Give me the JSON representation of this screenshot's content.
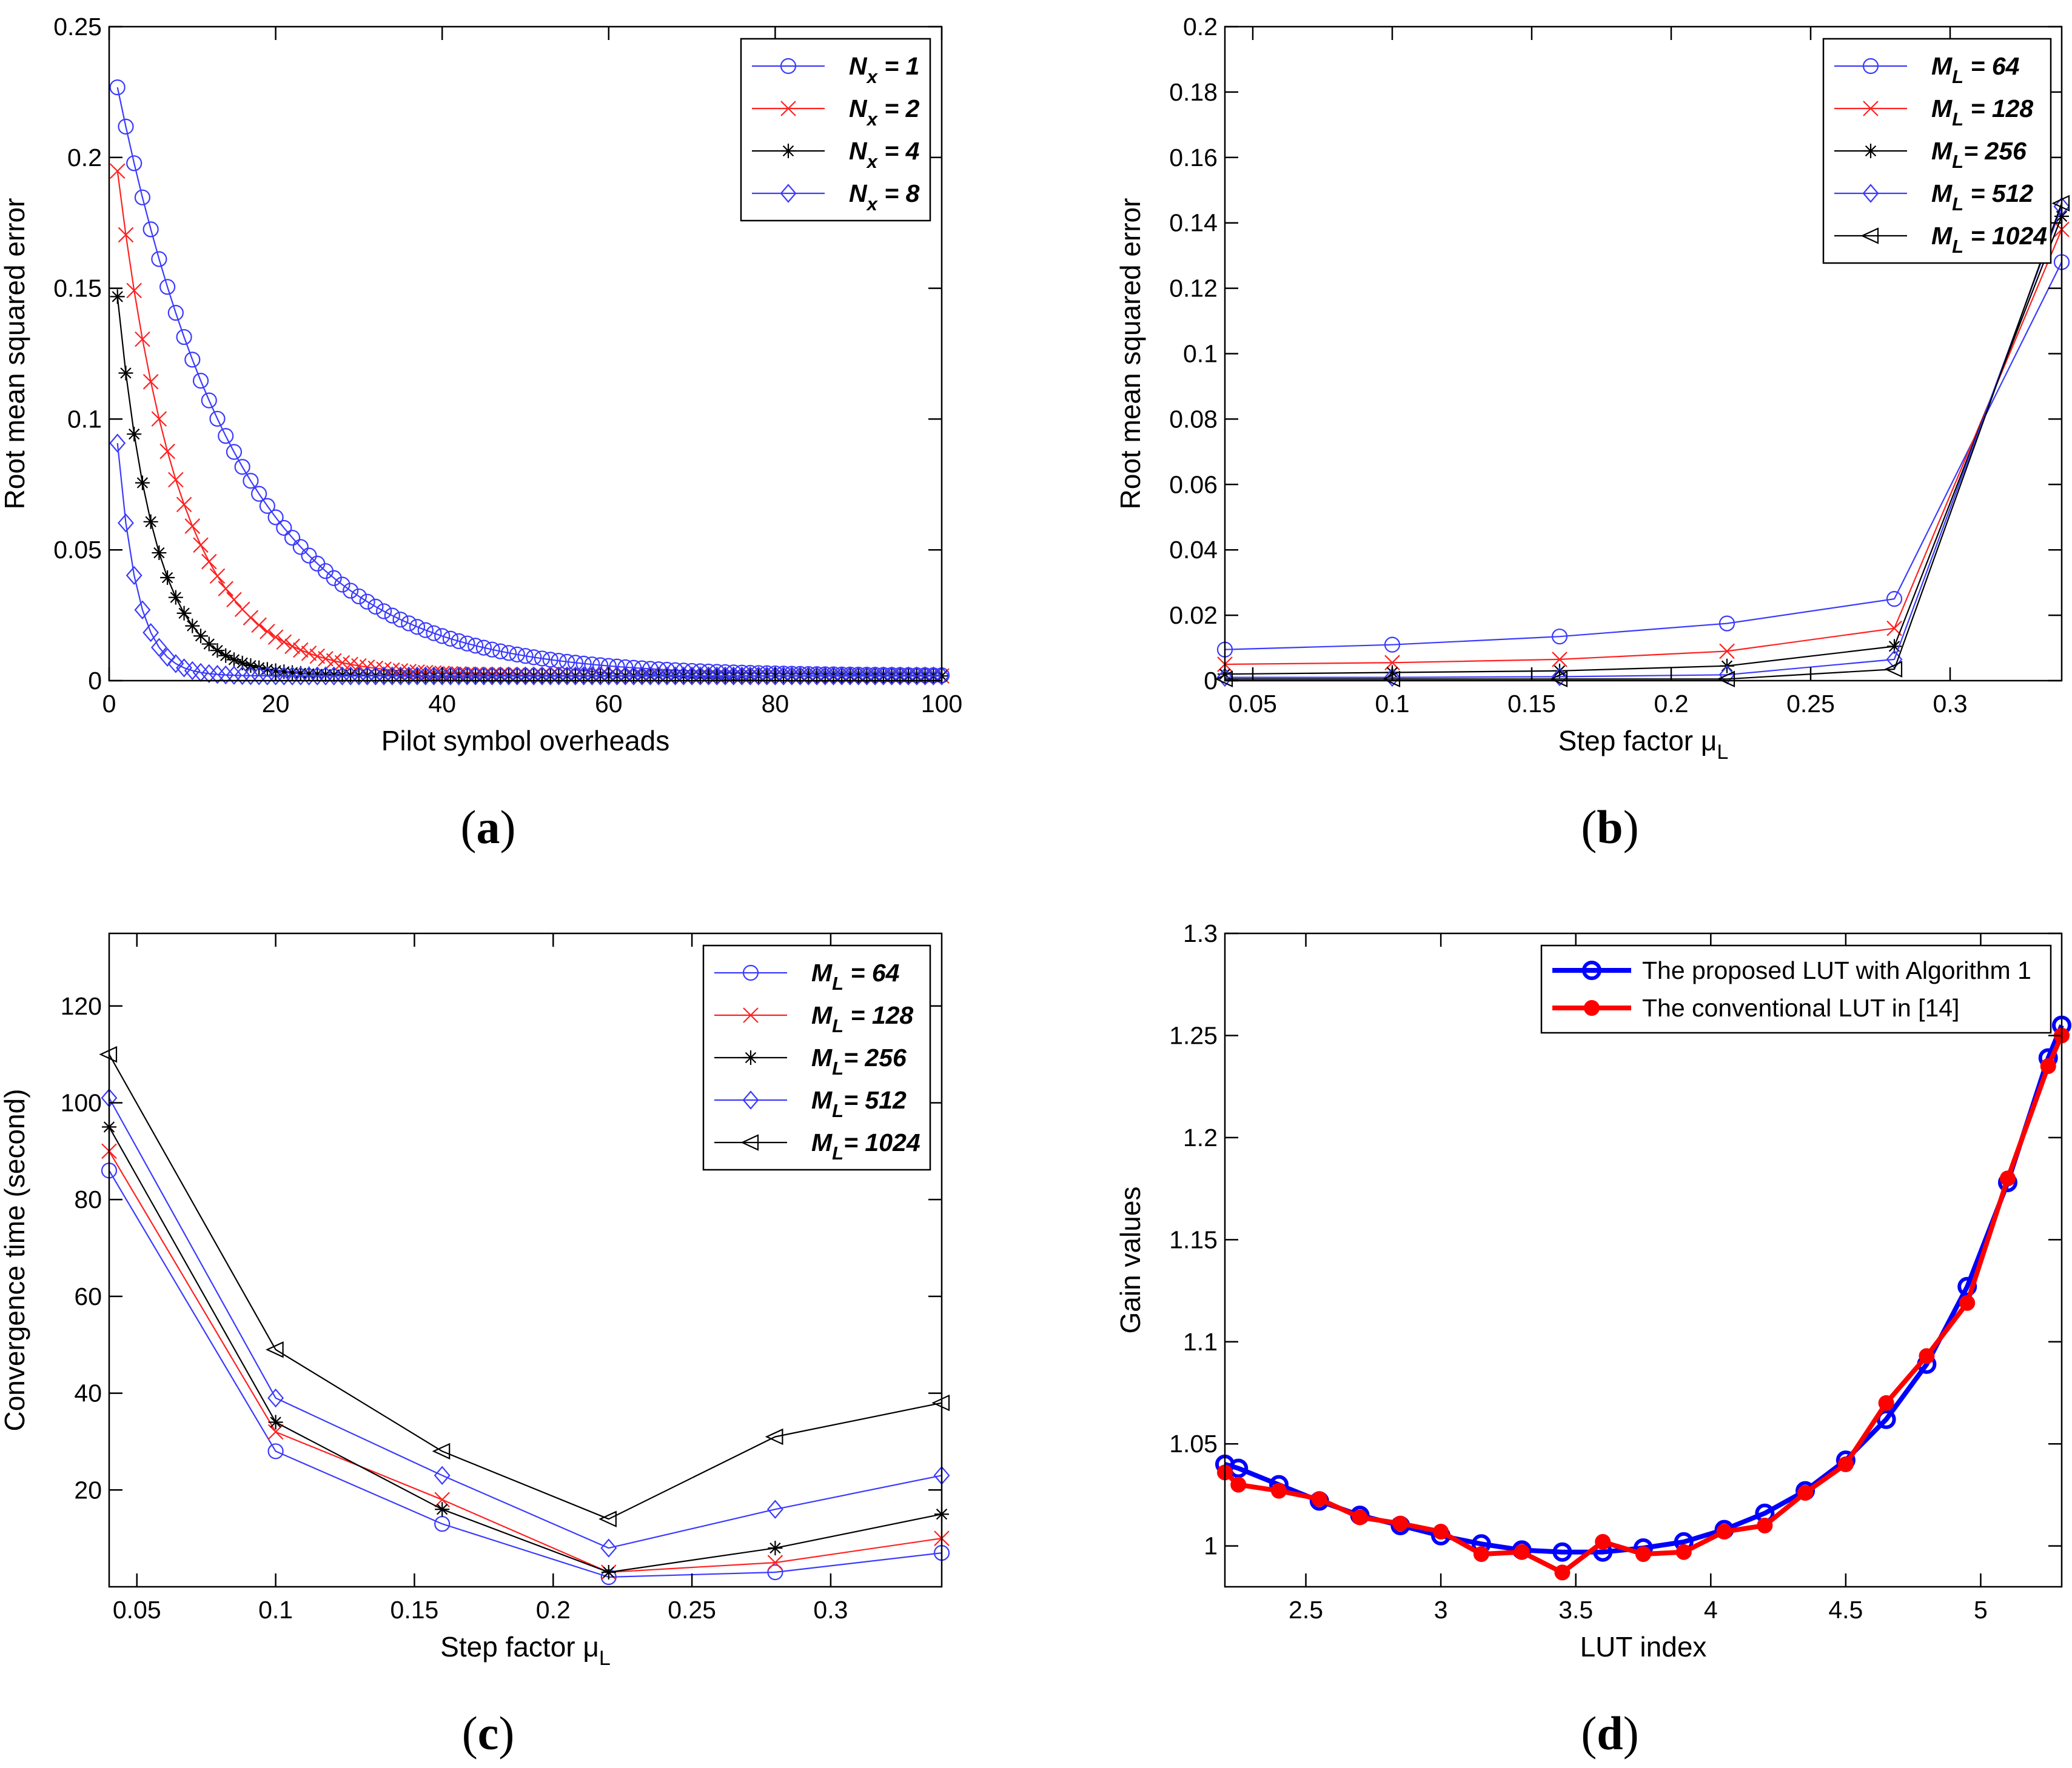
{
  "captions": [
    {
      "open": "(",
      "letter": "a",
      "close": ")"
    },
    {
      "open": "(",
      "letter": "b",
      "close": ")"
    },
    {
      "open": "(",
      "letter": "c",
      "close": ")"
    },
    {
      "open": "(",
      "letter": "d",
      "close": ")"
    }
  ],
  "colors": {
    "blue": "#3a3aff",
    "red": "#ff2020",
    "black": "#000000",
    "darkblue": "#0000ff",
    "darkred": "#ff0000"
  },
  "chart_data": [
    {
      "id": "a",
      "type": "line",
      "title": "",
      "xlabel": "Pilot symbol overheads",
      "ylabel": "Root mean squared error",
      "xlim": [
        0,
        100
      ],
      "ylim": [
        0,
        0.25
      ],
      "xticks": [
        0,
        20,
        40,
        60,
        80,
        100
      ],
      "xticklabels": [
        "0",
        "20",
        "40",
        "60",
        "80",
        "100"
      ],
      "yticks": [
        0,
        0.05,
        0.1,
        0.15,
        0.2,
        0.25
      ],
      "yticklabels": [
        "0",
        "0.05",
        "0.1",
        "0.15",
        "0.2",
        "0.25"
      ],
      "legend": {
        "position": "top-right"
      },
      "series": [
        {
          "name": "Nx = 1",
          "sym": "N",
          "sub": "x",
          "eq": " = 1",
          "color": "#3a3aff",
          "marker": "circle",
          "model": {
            "type": "exp",
            "a": 0.225,
            "k": 0.069,
            "floor": 0.0018
          }
        },
        {
          "name": "Nx = 2",
          "sym": "N",
          "sub": "x",
          "eq": " = 2",
          "color": "#ff2020",
          "marker": "x",
          "model": {
            "type": "exp",
            "a": 0.193,
            "k": 0.135,
            "floor": 0.0018
          }
        },
        {
          "name": "Nx = 4",
          "sym": "N",
          "sub": "x",
          "eq": " = 4",
          "color": "#000000",
          "marker": "star",
          "model": {
            "type": "exp",
            "a": 0.145,
            "k": 0.225,
            "floor": 0.0018
          }
        },
        {
          "name": "Nx = 8",
          "sym": "N",
          "sub": "x",
          "eq": " = 8",
          "color": "#3a3aff",
          "marker": "diamond",
          "model": {
            "type": "exp",
            "a": 0.089,
            "k": 0.42,
            "floor": 0.0018
          }
        }
      ],
      "x": {
        "from": 1,
        "to": 100,
        "step": 1
      }
    },
    {
      "id": "b",
      "type": "line",
      "title": "",
      "xlabel": "Step factor μ",
      "xlabel_sub": "L",
      "ylabel": "Root mean squared error",
      "xlim": [
        0.04,
        0.34
      ],
      "ylim": [
        0,
        0.2
      ],
      "xticks": [
        0.05,
        0.1,
        0.15,
        0.2,
        0.25,
        0.3
      ],
      "xticklabels": [
        "0.05",
        "0.1",
        "0.15",
        "0.2",
        "0.25",
        "0.3"
      ],
      "yticks": [
        0,
        0.02,
        0.04,
        0.06,
        0.08,
        0.1,
        0.12,
        0.14,
        0.16,
        0.18,
        0.2
      ],
      "yticklabels": [
        "0",
        "0.02",
        "0.04",
        "0.06",
        "0.08",
        "0.1",
        "0.12",
        "0.14",
        "0.16",
        "0.18",
        "0.2"
      ],
      "legend": {
        "position": "top-right"
      },
      "x": [
        0.04,
        0.1,
        0.16,
        0.22,
        0.28,
        0.34
      ],
      "series": [
        {
          "name": "ML = 64",
          "sym": "M",
          "sub": "L",
          "eq": " = 64",
          "color": "#3a3aff",
          "marker": "circle",
          "values": [
            0.0095,
            0.011,
            0.0135,
            0.0175,
            0.025,
            0.128
          ]
        },
        {
          "name": "ML = 128",
          "sym": "M",
          "sub": "L",
          "eq": " = 128",
          "color": "#ff2020",
          "marker": "x",
          "values": [
            0.005,
            0.0055,
            0.0065,
            0.009,
            0.016,
            0.138
          ]
        },
        {
          "name": "ML = 256",
          "sym": "M",
          "sub": "L",
          "eq": "= 256",
          "color": "#000000",
          "marker": "star",
          "values": [
            0.002,
            0.0025,
            0.003,
            0.0045,
            0.0105,
            0.142
          ]
        },
        {
          "name": "ML = 512",
          "sym": "M",
          "sub": "L",
          "eq": " = 512",
          "color": "#3a3aff",
          "marker": "diamond",
          "values": [
            0.001,
            0.001,
            0.0012,
            0.0018,
            0.0065,
            0.145
          ]
        },
        {
          "name": "ML = 1024",
          "sym": "M",
          "sub": "L",
          "eq": " = 1024",
          "color": "#000000",
          "marker": "triangle-left",
          "values": [
            0.0005,
            0.0005,
            0.0005,
            0.0005,
            0.0035,
            0.146
          ]
        }
      ]
    },
    {
      "id": "c",
      "type": "line",
      "title": "",
      "xlabel": "Step factor μ",
      "xlabel_sub": "L",
      "ylabel": "Convergence time (second)",
      "xlim": [
        0.04,
        0.34
      ],
      "ylim": [
        0,
        135
      ],
      "xticks": [
        0.05,
        0.1,
        0.15,
        0.2,
        0.25,
        0.3
      ],
      "xticklabels": [
        "0.05",
        "0.1",
        "0.15",
        "0.2",
        "0.25",
        "0.3"
      ],
      "yticks": [
        20,
        40,
        60,
        80,
        100,
        120
      ],
      "yticklabels": [
        "20",
        "40",
        "60",
        "80",
        "100",
        "120"
      ],
      "legend": {
        "position": "top-right"
      },
      "x": [
        0.04,
        0.1,
        0.16,
        0.22,
        0.28,
        0.34
      ],
      "series": [
        {
          "name": "ML = 64",
          "sym": "M",
          "sub": "L",
          "eq": " = 64",
          "color": "#3a3aff",
          "marker": "circle",
          "values": [
            86,
            28,
            13,
            2,
            3,
            7
          ]
        },
        {
          "name": "ML = 128",
          "sym": "M",
          "sub": "L",
          "eq": " = 128",
          "color": "#ff2020",
          "marker": "x",
          "values": [
            90,
            32,
            18,
            3,
            5,
            10
          ]
        },
        {
          "name": "ML = 256",
          "sym": "M",
          "sub": "L",
          "eq": "= 256",
          "color": "#000000",
          "marker": "star",
          "values": [
            95,
            34,
            16,
            3,
            8,
            15
          ]
        },
        {
          "name": "ML = 512",
          "sym": "M",
          "sub": "L",
          "eq": "= 512",
          "color": "#3a3aff",
          "marker": "diamond",
          "values": [
            101,
            39,
            23,
            8,
            16,
            23
          ]
        },
        {
          "name": "ML = 1024",
          "sym": "M",
          "sub": "L",
          "eq": "= 1024",
          "color": "#000000",
          "marker": "triangle-left",
          "values": [
            110,
            49,
            28,
            14,
            31,
            38
          ]
        }
      ]
    },
    {
      "id": "d",
      "type": "line",
      "title": "",
      "xlabel": "LUT index",
      "ylabel": "Gain values",
      "xlim": [
        2.2,
        5.3
      ],
      "ylim": [
        0.98,
        1.3
      ],
      "xticks": [
        2.5,
        3,
        3.5,
        4,
        4.5,
        5
      ],
      "xticklabels": [
        "2.5",
        "3",
        "3.5",
        "4",
        "4.5",
        "5"
      ],
      "yticks": [
        1,
        1.05,
        1.1,
        1.15,
        1.2,
        1.25,
        1.3
      ],
      "yticklabels": [
        "1",
        "1.05",
        "1.1",
        "1.15",
        "1.2",
        "1.25",
        "1.3"
      ],
      "legend": {
        "position": "top-right"
      },
      "x": [
        2.2,
        2.25,
        2.4,
        2.55,
        2.7,
        2.85,
        3.0,
        3.15,
        3.3,
        3.45,
        3.6,
        3.75,
        3.9,
        4.05,
        4.2,
        4.35,
        4.5,
        4.65,
        4.8,
        4.95,
        5.1,
        5.25,
        5.3
      ],
      "series": [
        {
          "name": "The proposed LUT with Algorithm 1",
          "color": "#0000ff",
          "marker": "open-circle",
          "width": 8,
          "values": [
            1.04,
            1.038,
            1.03,
            1.022,
            1.015,
            1.01,
            1.005,
            1.001,
            0.998,
            0.997,
            0.997,
            0.999,
            1.002,
            1.008,
            1.016,
            1.027,
            1.042,
            1.062,
            1.089,
            1.127,
            1.178,
            1.239,
            1.255
          ]
        },
        {
          "name": "The conventional LUT in [14]",
          "color": "#ff0000",
          "marker": "filled-circle",
          "width": 8,
          "values": [
            1.036,
            1.03,
            1.027,
            1.023,
            1.014,
            1.011,
            1.007,
            0.996,
            0.997,
            0.987,
            1.002,
            0.996,
            0.997,
            1.007,
            1.01,
            1.026,
            1.04,
            1.07,
            1.093,
            1.119,
            1.18,
            1.235,
            1.25
          ]
        }
      ]
    }
  ]
}
